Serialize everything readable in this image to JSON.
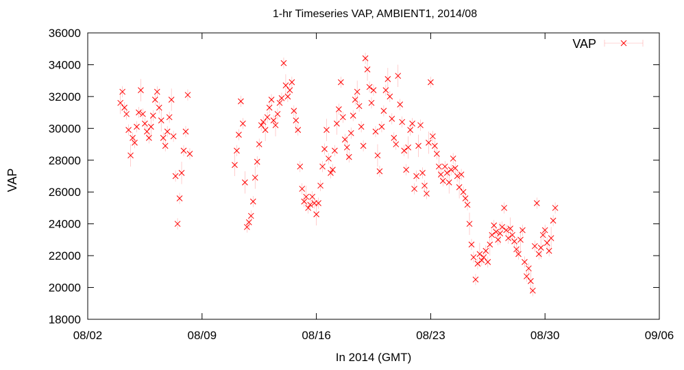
{
  "chart_data": {
    "type": "scatter",
    "title": "1-hr Timeseries VAP, AMBIENT1, 2014/08",
    "xlabel": "In 2014 (GMT)",
    "ylabel": "VAP",
    "legend": {
      "label": "VAP",
      "placement": "top-right"
    },
    "xlim": [
      "2014-08-02",
      "2014-09-06"
    ],
    "ylim": [
      18000,
      36000
    ],
    "x_ticks": [
      "08/02",
      "08/09",
      "08/16",
      "08/23",
      "08/30",
      "09/06"
    ],
    "y_ticks": [
      18000,
      20000,
      22000,
      24000,
      26000,
      28000,
      30000,
      32000,
      34000,
      36000
    ],
    "grid": false,
    "series_color": "#ff0000",
    "marker": "x",
    "error_bars": true,
    "series": [
      {
        "name": "VAP",
        "points": [
          [
            "2014-08-04T00",
            31600
          ],
          [
            "2014-08-04T03",
            32300
          ],
          [
            "2014-08-04T06",
            31300
          ],
          [
            "2014-08-04T09",
            30900
          ],
          [
            "2014-08-04T12",
            29900
          ],
          [
            "2014-08-04T15",
            28300
          ],
          [
            "2014-08-04T18",
            29400
          ],
          [
            "2014-08-04T21",
            29100
          ],
          [
            "2014-08-05T00",
            30100
          ],
          [
            "2014-08-05T03",
            31000
          ],
          [
            "2014-08-05T06",
            32400
          ],
          [
            "2014-08-05T09",
            30900
          ],
          [
            "2014-08-05T12",
            30300
          ],
          [
            "2014-08-05T15",
            29800
          ],
          [
            "2014-08-05T18",
            29400
          ],
          [
            "2014-08-05T21",
            30100
          ],
          [
            "2014-08-06T00",
            30800
          ],
          [
            "2014-08-06T03",
            31800
          ],
          [
            "2014-08-06T06",
            32300
          ],
          [
            "2014-08-06T09",
            31300
          ],
          [
            "2014-08-06T12",
            30500
          ],
          [
            "2014-08-06T15",
            29400
          ],
          [
            "2014-08-06T18",
            28900
          ],
          [
            "2014-08-06T21",
            29800
          ],
          [
            "2014-08-07T00",
            30700
          ],
          [
            "2014-08-07T03",
            31800
          ],
          [
            "2014-08-07T06",
            29500
          ],
          [
            "2014-08-07T09",
            27000
          ],
          [
            "2014-08-07T12",
            24000
          ],
          [
            "2014-08-07T15",
            25600
          ],
          [
            "2014-08-07T18",
            27200
          ],
          [
            "2014-08-07T21",
            28600
          ],
          [
            "2014-08-08T00",
            29800
          ],
          [
            "2014-08-08T03",
            32100
          ],
          [
            "2014-08-08T06",
            28400
          ],
          [
            "2014-08-11T00",
            27700
          ],
          [
            "2014-08-11T03",
            28600
          ],
          [
            "2014-08-11T06",
            29600
          ],
          [
            "2014-08-11T09",
            31700
          ],
          [
            "2014-08-11T12",
            30300
          ],
          [
            "2014-08-11T15",
            26600
          ],
          [
            "2014-08-11T18",
            23800
          ],
          [
            "2014-08-11T21",
            24100
          ],
          [
            "2014-08-12T00",
            24500
          ],
          [
            "2014-08-12T03",
            25400
          ],
          [
            "2014-08-12T06",
            26900
          ],
          [
            "2014-08-12T09",
            27900
          ],
          [
            "2014-08-12T12",
            29000
          ],
          [
            "2014-08-12T15",
            30200
          ],
          [
            "2014-08-12T18",
            30400
          ],
          [
            "2014-08-12T21",
            29900
          ],
          [
            "2014-08-13T00",
            30700
          ],
          [
            "2014-08-13T03",
            31300
          ],
          [
            "2014-08-13T06",
            31800
          ],
          [
            "2014-08-13T09",
            30500
          ],
          [
            "2014-08-13T12",
            30200
          ],
          [
            "2014-08-13T15",
            30900
          ],
          [
            "2014-08-13T18",
            31600
          ],
          [
            "2014-08-13T21",
            31900
          ],
          [
            "2014-08-14T00",
            34100
          ],
          [
            "2014-08-14T03",
            32700
          ],
          [
            "2014-08-14T06",
            32000
          ],
          [
            "2014-08-14T09",
            32400
          ],
          [
            "2014-08-14T12",
            32900
          ],
          [
            "2014-08-14T15",
            31100
          ],
          [
            "2014-08-14T18",
            30500
          ],
          [
            "2014-08-14T21",
            29900
          ],
          [
            "2014-08-15T00",
            27600
          ],
          [
            "2014-08-15T03",
            26200
          ],
          [
            "2014-08-15T06",
            25400
          ],
          [
            "2014-08-15T09",
            25700
          ],
          [
            "2014-08-15T12",
            25000
          ],
          [
            "2014-08-15T15",
            25200
          ],
          [
            "2014-08-15T18",
            25700
          ],
          [
            "2014-08-15T21",
            25300
          ],
          [
            "2014-08-16T00",
            24600
          ],
          [
            "2014-08-16T03",
            25300
          ],
          [
            "2014-08-16T06",
            26400
          ],
          [
            "2014-08-16T09",
            27600
          ],
          [
            "2014-08-16T12",
            28700
          ],
          [
            "2014-08-16T15",
            29900
          ],
          [
            "2014-08-16T18",
            28100
          ],
          [
            "2014-08-16T21",
            27200
          ],
          [
            "2014-08-17T00",
            27400
          ],
          [
            "2014-08-17T03",
            28600
          ],
          [
            "2014-08-17T06",
            30300
          ],
          [
            "2014-08-17T09",
            31200
          ],
          [
            "2014-08-17T12",
            32900
          ],
          [
            "2014-08-17T15",
            30700
          ],
          [
            "2014-08-17T18",
            29300
          ],
          [
            "2014-08-17T21",
            28800
          ],
          [
            "2014-08-18T00",
            28200
          ],
          [
            "2014-08-18T03",
            29700
          ],
          [
            "2014-08-18T06",
            30800
          ],
          [
            "2014-08-18T09",
            31800
          ],
          [
            "2014-08-18T12",
            32300
          ],
          [
            "2014-08-18T15",
            31400
          ],
          [
            "2014-08-18T18",
            30100
          ],
          [
            "2014-08-18T21",
            28900
          ],
          [
            "2014-08-19T00",
            34400
          ],
          [
            "2014-08-19T03",
            33700
          ],
          [
            "2014-08-19T06",
            32600
          ],
          [
            "2014-08-19T09",
            31600
          ],
          [
            "2014-08-19T12",
            32400
          ],
          [
            "2014-08-19T15",
            29800
          ],
          [
            "2014-08-19T18",
            28300
          ],
          [
            "2014-08-19T21",
            27300
          ],
          [
            "2014-08-20T00",
            30100
          ],
          [
            "2014-08-20T03",
            31100
          ],
          [
            "2014-08-20T06",
            32400
          ],
          [
            "2014-08-20T09",
            33100
          ],
          [
            "2014-08-20T12",
            32000
          ],
          [
            "2014-08-20T15",
            30600
          ],
          [
            "2014-08-20T18",
            29400
          ],
          [
            "2014-08-20T21",
            29000
          ],
          [
            "2014-08-21T00",
            33300
          ],
          [
            "2014-08-21T03",
            31500
          ],
          [
            "2014-08-21T06",
            30400
          ],
          [
            "2014-08-21T09",
            28600
          ],
          [
            "2014-08-21T12",
            27400
          ],
          [
            "2014-08-21T15",
            28800
          ],
          [
            "2014-08-21T18",
            29900
          ],
          [
            "2014-08-21T21",
            30300
          ],
          [
            "2014-08-22T00",
            26200
          ],
          [
            "2014-08-22T03",
            27000
          ],
          [
            "2014-08-22T06",
            28900
          ],
          [
            "2014-08-22T09",
            30200
          ],
          [
            "2014-08-22T12",
            27200
          ],
          [
            "2014-08-22T15",
            26400
          ],
          [
            "2014-08-22T18",
            25900
          ],
          [
            "2014-08-22T21",
            29100
          ],
          [
            "2014-08-23T00",
            32900
          ],
          [
            "2014-08-23T03",
            29500
          ],
          [
            "2014-08-23T06",
            28900
          ],
          [
            "2014-08-23T09",
            28400
          ],
          [
            "2014-08-23T12",
            27600
          ],
          [
            "2014-08-23T15",
            27100
          ],
          [
            "2014-08-23T18",
            26700
          ],
          [
            "2014-08-23T21",
            27600
          ],
          [
            "2014-08-24T00",
            27200
          ],
          [
            "2014-08-24T03",
            26600
          ],
          [
            "2014-08-24T06",
            27400
          ],
          [
            "2014-08-24T09",
            28100
          ],
          [
            "2014-08-24T12",
            27500
          ],
          [
            "2014-08-24T15",
            27000
          ],
          [
            "2014-08-24T18",
            26300
          ],
          [
            "2014-08-24T21",
            27100
          ],
          [
            "2014-08-25T00",
            26000
          ],
          [
            "2014-08-25T03",
            25600
          ],
          [
            "2014-08-25T06",
            25200
          ],
          [
            "2014-08-25T09",
            24000
          ],
          [
            "2014-08-25T12",
            22700
          ],
          [
            "2014-08-25T15",
            21900
          ],
          [
            "2014-08-25T18",
            20500
          ],
          [
            "2014-08-25T21",
            21500
          ],
          [
            "2014-08-26T00",
            22100
          ],
          [
            "2014-08-26T03",
            21700
          ],
          [
            "2014-08-26T06",
            21900
          ],
          [
            "2014-08-26T09",
            22300
          ],
          [
            "2014-08-26T12",
            21600
          ],
          [
            "2014-08-26T15",
            22700
          ],
          [
            "2014-08-26T18",
            23300
          ],
          [
            "2014-08-26T21",
            23900
          ],
          [
            "2014-08-27T00",
            23500
          ],
          [
            "2014-08-27T03",
            23000
          ],
          [
            "2014-08-27T06",
            23400
          ],
          [
            "2014-08-27T09",
            23800
          ],
          [
            "2014-08-27T12",
            25000
          ],
          [
            "2014-08-27T15",
            23600
          ],
          [
            "2014-08-27T18",
            23100
          ],
          [
            "2014-08-27T21",
            23700
          ],
          [
            "2014-08-28T00",
            23300
          ],
          [
            "2014-08-28T03",
            22900
          ],
          [
            "2014-08-28T06",
            22400
          ],
          [
            "2014-08-28T09",
            22100
          ],
          [
            "2014-08-28T12",
            23000
          ],
          [
            "2014-08-28T15",
            23600
          ],
          [
            "2014-08-28T18",
            21600
          ],
          [
            "2014-08-28T21",
            20700
          ],
          [
            "2014-08-29T00",
            21200
          ],
          [
            "2014-08-29T03",
            20400
          ],
          [
            "2014-08-29T06",
            19800
          ],
          [
            "2014-08-29T09",
            22600
          ],
          [
            "2014-08-29T12",
            25300
          ],
          [
            "2014-08-29T15",
            22100
          ],
          [
            "2014-08-29T18",
            22500
          ],
          [
            "2014-08-29T21",
            23300
          ],
          [
            "2014-08-30T00",
            23600
          ],
          [
            "2014-08-30T03",
            22800
          ],
          [
            "2014-08-30T06",
            22300
          ],
          [
            "2014-08-30T09",
            23100
          ],
          [
            "2014-08-30T12",
            24200
          ],
          [
            "2014-08-30T15",
            25000
          ]
        ]
      }
    ]
  }
}
